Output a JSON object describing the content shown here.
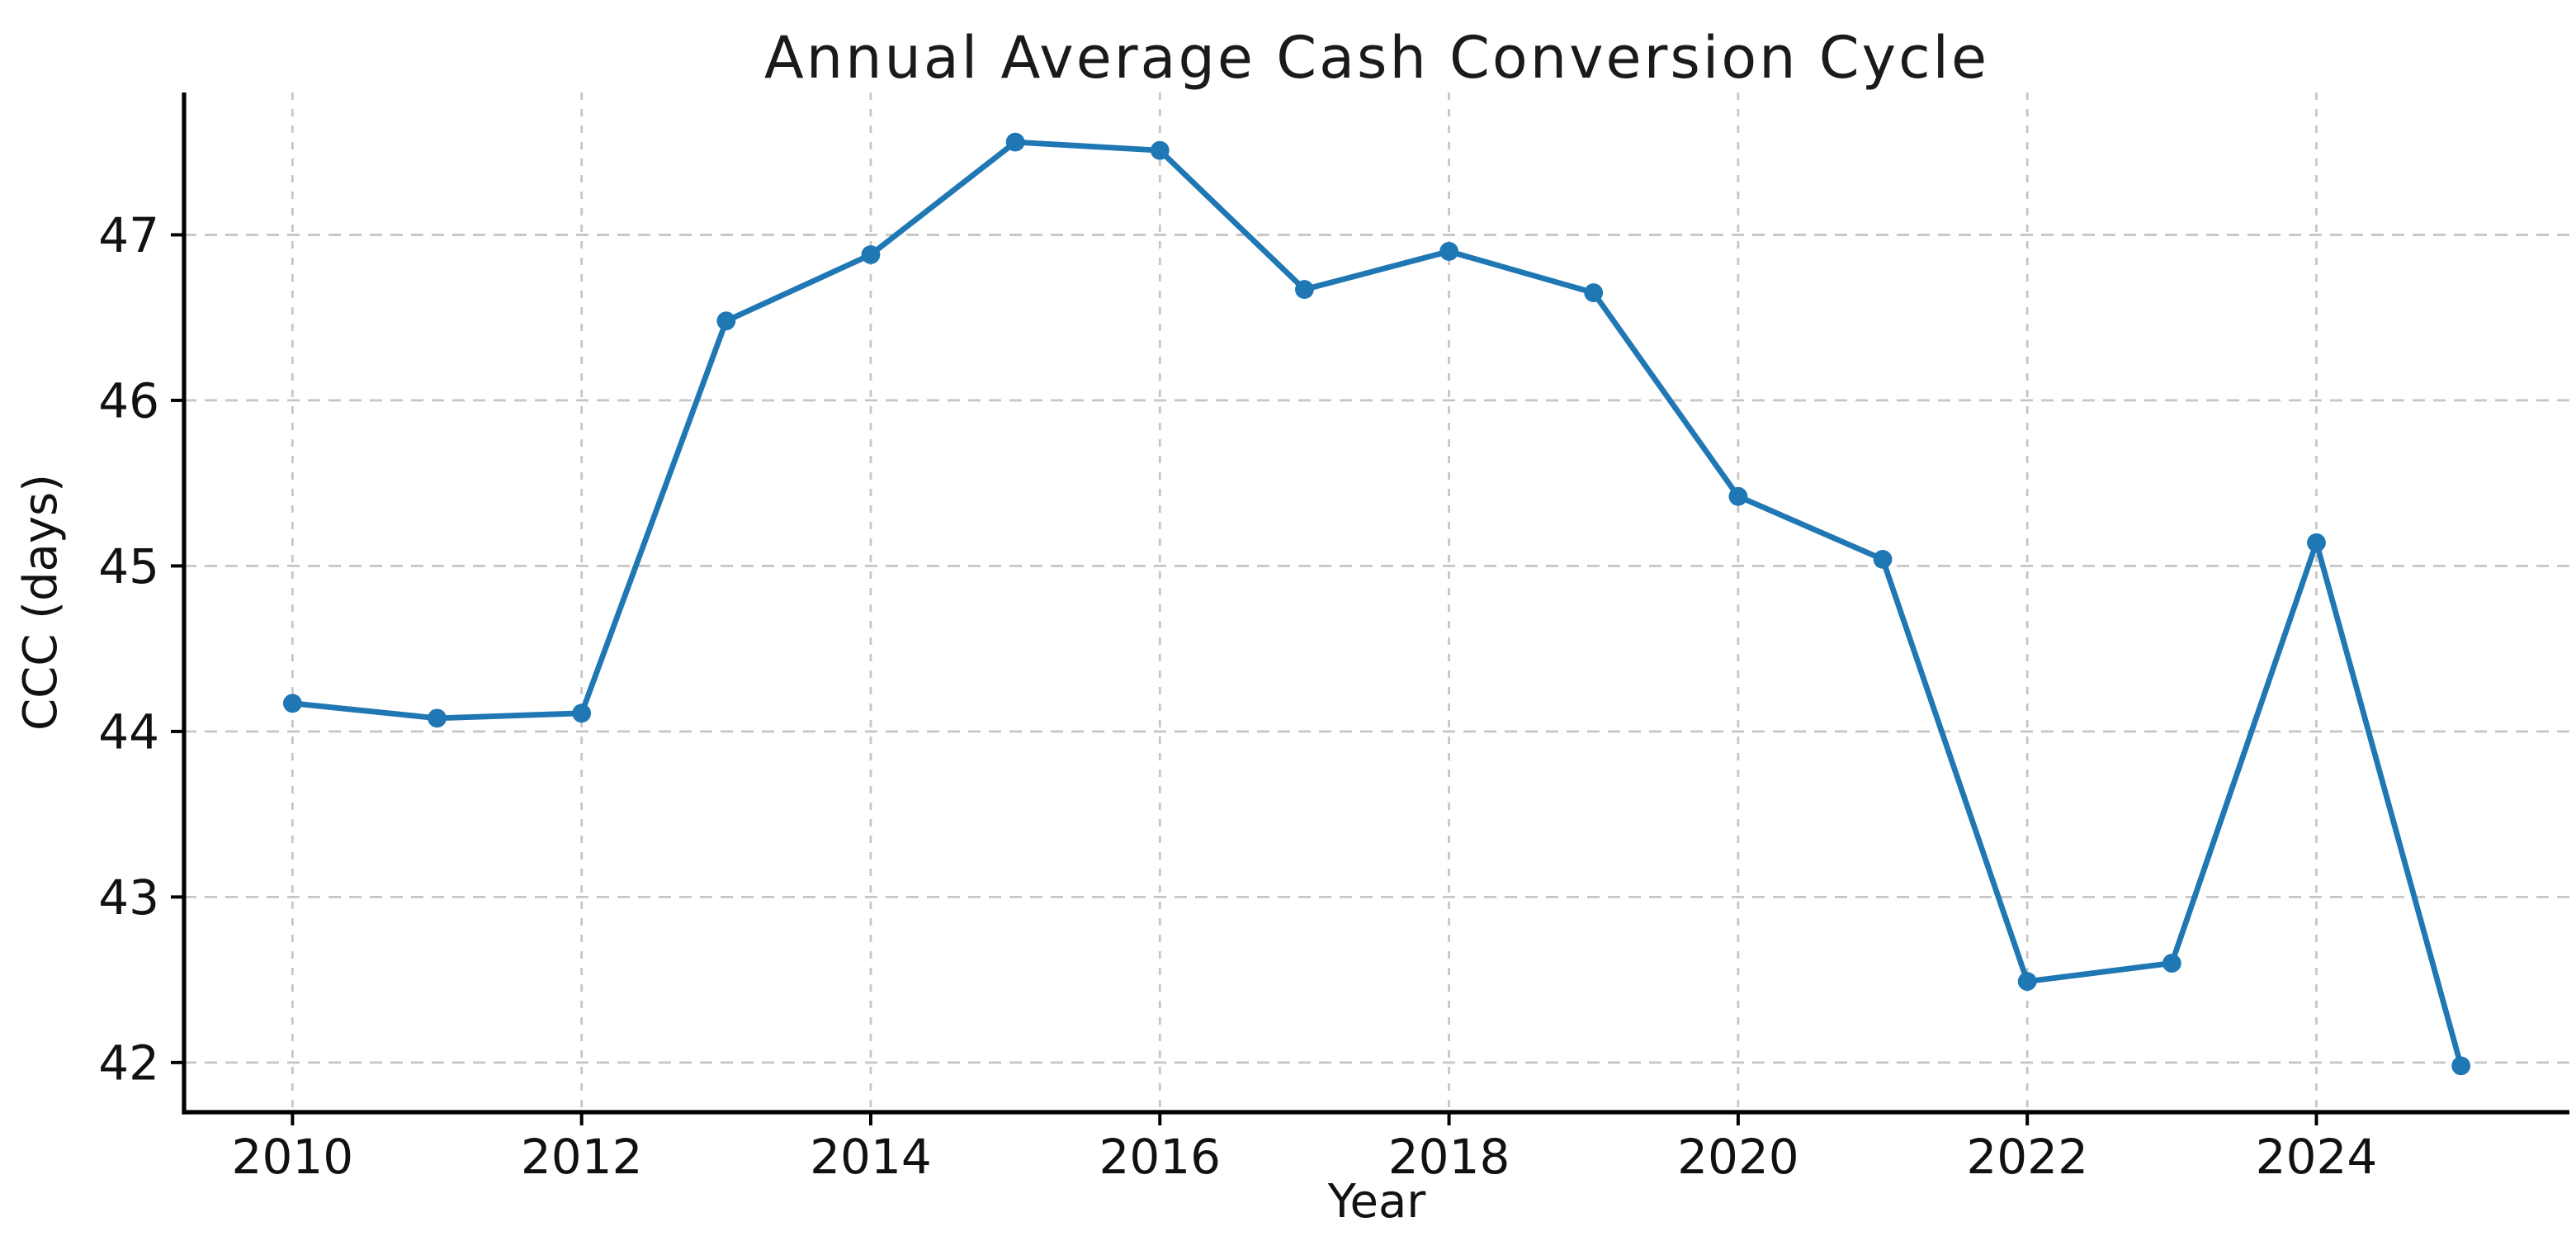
{
  "figure": {
    "background": "#ffffff"
  },
  "chart_data": {
    "type": "line",
    "title": "Annual Average Cash Conversion Cycle",
    "xlabel": "Year",
    "ylabel": "CCC (days)",
    "x": [
      2010,
      2011,
      2012,
      2013,
      2014,
      2015,
      2016,
      2017,
      2018,
      2019,
      2020,
      2021,
      2022,
      2023,
      2024,
      2025
    ],
    "values": [
      44.17,
      44.08,
      44.11,
      46.48,
      46.88,
      47.56,
      47.51,
      46.67,
      46.9,
      46.65,
      45.42,
      45.04,
      42.49,
      42.6,
      45.14,
      41.98
    ],
    "xticks": [
      2010,
      2012,
      2014,
      2016,
      2018,
      2020,
      2022,
      2024
    ],
    "yticks": [
      42,
      43,
      44,
      45,
      46,
      47
    ],
    "xlim": [
      2009.25,
      2025.75
    ],
    "ylim": [
      41.7,
      47.86
    ],
    "grid": true,
    "legend": "none",
    "styles": {
      "line_color": "#1f77b4",
      "marker": "circle",
      "marker_size": 5.7,
      "line_width": 3.4,
      "grid_color": "#c6c6c6",
      "spine_color": "#000000",
      "tick_color": "#000000",
      "tick_label_color": "#111111",
      "title_color": "#1a1a1a"
    }
  }
}
